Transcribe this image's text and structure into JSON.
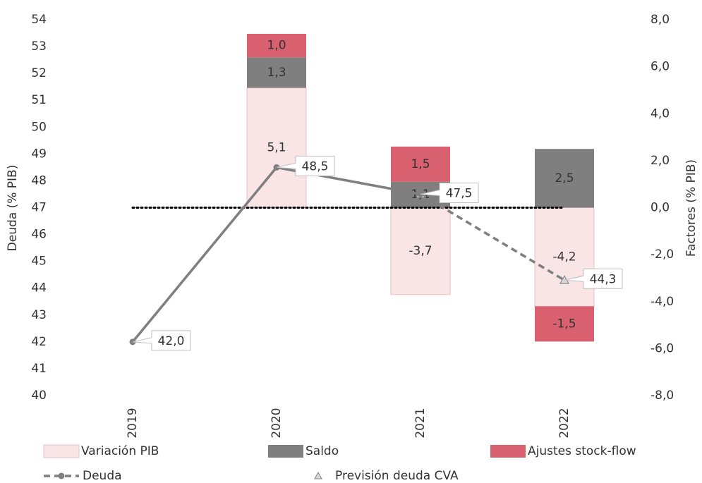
{
  "chart_data": {
    "type": "bar",
    "categories": [
      "2019",
      "2020",
      "2021",
      "2022"
    ],
    "ylabel": "Deuda (% PIB)",
    "y2label": "Factores (% PIB)",
    "ylim": [
      40,
      54
    ],
    "yticks": [
      40,
      41,
      42,
      43,
      44,
      45,
      46,
      47,
      48,
      49,
      50,
      51,
      52,
      53,
      54
    ],
    "y2lim": [
      -8,
      8
    ],
    "y2ticks": [
      {
        "value": -8,
        "label": "-8,0"
      },
      {
        "value": -6,
        "label": "-6,0"
      },
      {
        "value": -4,
        "label": "-4,0"
      },
      {
        "value": -2,
        "label": "-2,0"
      },
      {
        "value": 0,
        "label": "0,0"
      },
      {
        "value": 2,
        "label": "2,0"
      },
      {
        "value": 4,
        "label": "4,0"
      },
      {
        "value": 6,
        "label": "6,0"
      },
      {
        "value": 8,
        "label": "8,0"
      }
    ],
    "series": [
      {
        "name": "Variación PIB",
        "type": "bar",
        "axis": "y2",
        "color": "#f9e4e6",
        "values": [
          null,
          5.1,
          -3.7,
          -4.2
        ],
        "value_labels": [
          null,
          "5,1",
          "-3,7",
          "-4,2"
        ]
      },
      {
        "name": "Saldo",
        "type": "bar",
        "axis": "y2",
        "color": "#7f7f7f",
        "values": [
          null,
          1.3,
          1.1,
          2.5
        ],
        "value_labels": [
          null,
          "1,3",
          "1,1",
          "2,5"
        ]
      },
      {
        "name": "Ajustes stock-flow",
        "type": "bar",
        "axis": "y2",
        "color": "#d9606e",
        "values": [
          null,
          1.0,
          1.5,
          -1.5
        ],
        "value_labels": [
          null,
          "1,0",
          "1,5",
          "-1,5"
        ]
      },
      {
        "name": "Previsión deuda CVA",
        "type": "line",
        "color": "#7f7f7f",
        "dashed": true,
        "marker": "triangle",
        "values": [
          null,
          null,
          47.5,
          44.3
        ],
        "value_labels": [
          null,
          null,
          null,
          "44,3"
        ]
      },
      {
        "name": "Deuda",
        "type": "line",
        "color": "#7f7f7f",
        "marker": "circle",
        "values": [
          42.0,
          48.5,
          47.5,
          null
        ],
        "value_labels": [
          "42,0",
          "48,5",
          "47,5",
          null
        ]
      }
    ]
  }
}
